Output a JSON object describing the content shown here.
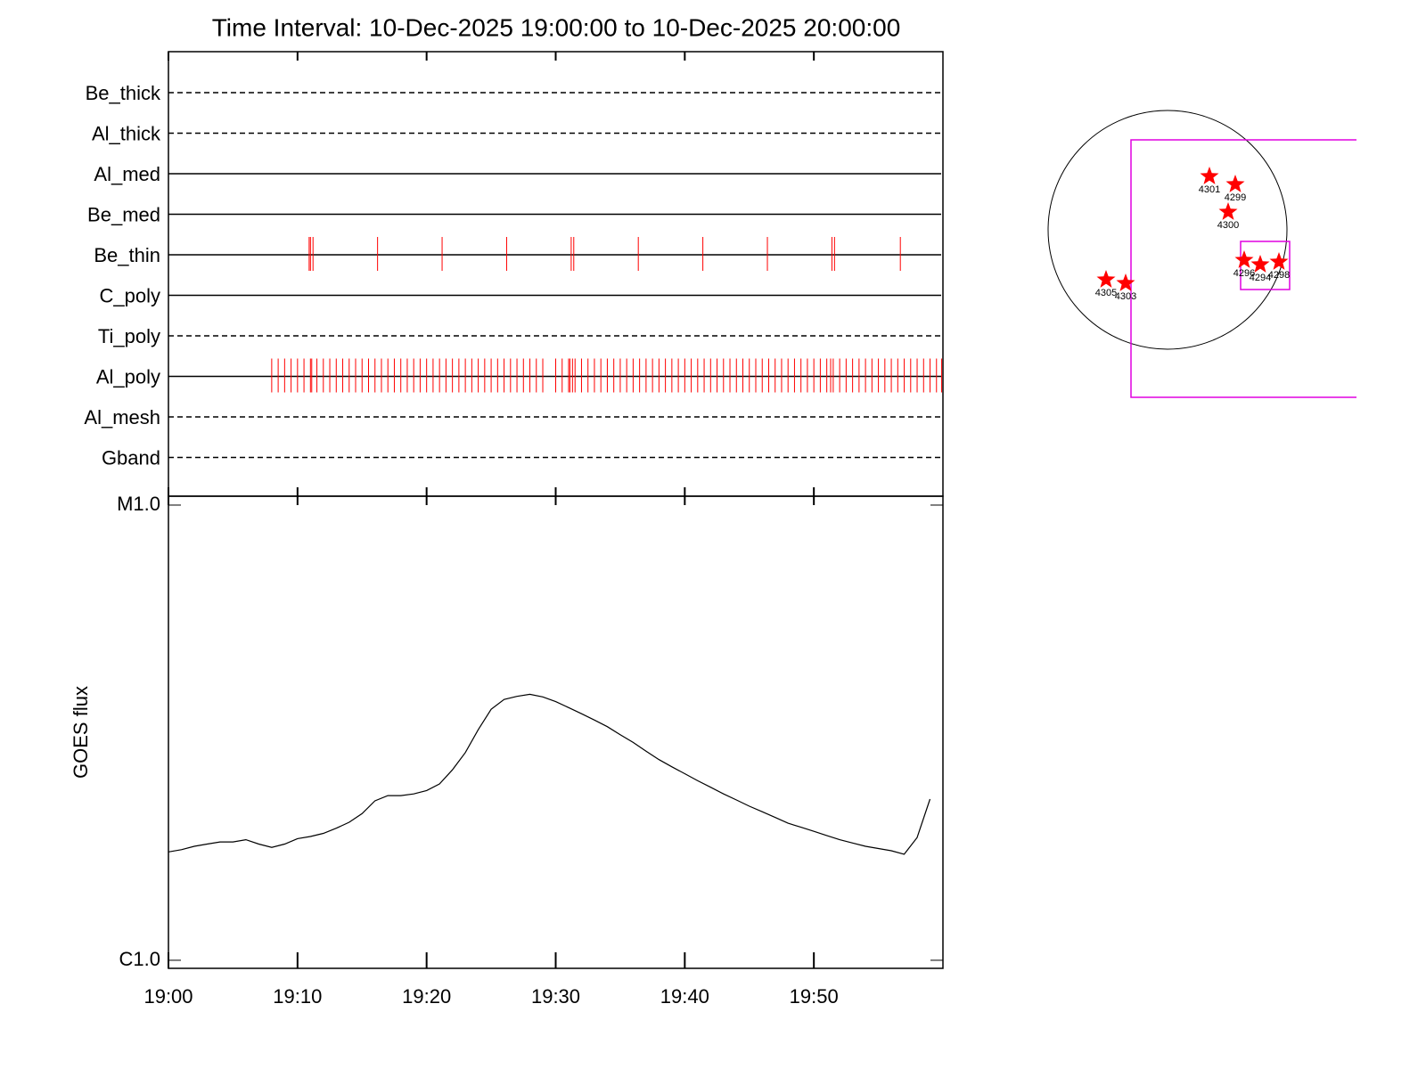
{
  "chart_data": [
    {
      "type": "events",
      "title": "Time Interval: 10-Dec-2025 19:00:00 to 10-Dec-2025 20:00:00",
      "xlim": [
        0,
        60
      ],
      "channels": [
        {
          "name": "Be_thick",
          "style": "dashed",
          "events": []
        },
        {
          "name": "Al_thick",
          "style": "dashed",
          "events": []
        },
        {
          "name": "Al_med",
          "style": "solid",
          "events": []
        },
        {
          "name": "Be_med",
          "style": "solid",
          "events": []
        },
        {
          "name": "Be_thin",
          "style": "solid",
          "events": [
            10.9,
            11.0,
            11.2,
            16.2,
            21.2,
            26.2,
            31.2,
            31.4,
            36.4,
            41.4,
            46.4,
            51.4,
            51.6,
            56.7
          ]
        },
        {
          "name": "C_poly",
          "style": "solid",
          "events": []
        },
        {
          "name": "Ti_poly",
          "style": "dashed",
          "events": []
        },
        {
          "name": "Al_poly",
          "style": "solid",
          "events": [
            8.0,
            8.5,
            9.0,
            9.5,
            10.0,
            10.5,
            11.0,
            11.1,
            11.5,
            12.0,
            12.5,
            13.0,
            13.5,
            14.0,
            14.5,
            15.0,
            15.5,
            16.0,
            16.5,
            17.0,
            17.5,
            18.0,
            18.5,
            19.0,
            19.5,
            20.0,
            20.5,
            21.0,
            21.5,
            22.0,
            22.5,
            23.0,
            23.5,
            24.0,
            24.5,
            25.0,
            25.5,
            26.0,
            26.5,
            27.0,
            27.5,
            28.0,
            28.5,
            29.0,
            30.0,
            30.5,
            31.0,
            31.1,
            31.3,
            31.5,
            32.0,
            32.5,
            33.0,
            33.5,
            34.0,
            34.5,
            35.0,
            35.5,
            36.0,
            36.5,
            37.0,
            37.5,
            38.0,
            38.5,
            39.0,
            39.5,
            40.0,
            40.5,
            41.0,
            41.5,
            42.0,
            42.5,
            43.0,
            43.5,
            44.0,
            44.5,
            45.0,
            45.5,
            46.0,
            46.5,
            47.0,
            47.5,
            48.0,
            48.5,
            49.0,
            49.5,
            50.0,
            50.5,
            51.0,
            51.3,
            51.5,
            52.0,
            52.5,
            53.0,
            53.5,
            54.0,
            54.5,
            55.0,
            55.5,
            56.0,
            56.5,
            57.0,
            57.5,
            58.0,
            58.5,
            59.0,
            59.5,
            59.9
          ]
        },
        {
          "name": "Al_mesh",
          "style": "dashed",
          "events": []
        },
        {
          "name": "Gband",
          "style": "dashed",
          "events": []
        }
      ]
    },
    {
      "type": "line",
      "ylabel": "GOES flux",
      "log": true,
      "xlim": [
        0,
        60
      ],
      "xticks": [
        {
          "value": 0,
          "label": "19:00"
        },
        {
          "value": 10,
          "label": "19:10"
        },
        {
          "value": 20,
          "label": "19:20"
        },
        {
          "value": 30,
          "label": "19:30"
        },
        {
          "value": 40,
          "label": "19:40"
        },
        {
          "value": 50,
          "label": "19:50"
        }
      ],
      "ylim": [
        9.6e-07,
        1.046e-05
      ],
      "yticks": [
        {
          "value": 1e-06,
          "label": "C1.0"
        },
        {
          "value": 1e-05,
          "label": "M1.0"
        }
      ],
      "x": [
        0,
        1,
        2,
        3,
        4,
        5,
        6,
        7,
        8,
        9,
        10,
        11,
        12,
        13,
        14,
        15,
        16,
        17,
        18,
        19,
        20,
        21,
        22,
        23,
        24,
        25,
        26,
        27,
        28,
        29,
        30,
        31,
        32,
        33,
        34,
        35,
        36,
        37,
        38,
        39,
        40,
        41,
        42,
        43,
        44,
        45,
        46,
        47,
        48,
        49,
        50,
        51,
        52,
        53,
        54,
        55,
        56,
        57,
        58,
        59,
        60
      ],
      "series": [
        {
          "color": "#000000",
          "values": [
            1.73e-06,
            1.75e-06,
            1.78e-06,
            1.8e-06,
            1.82e-06,
            1.82e-06,
            1.84e-06,
            1.8e-06,
            1.77e-06,
            1.8e-06,
            1.85e-06,
            1.87e-06,
            1.9e-06,
            1.95e-06,
            2.01e-06,
            2.1e-06,
            2.24e-06,
            2.3e-06,
            2.3e-06,
            2.32e-06,
            2.36e-06,
            2.44e-06,
            2.62e-06,
            2.86e-06,
            3.21e-06,
            3.56e-06,
            3.74e-06,
            3.8e-06,
            3.84e-06,
            3.79e-06,
            3.7e-06,
            3.59e-06,
            3.48e-06,
            3.37e-06,
            3.26e-06,
            3.13e-06,
            3.01e-06,
            2.88e-06,
            2.76e-06,
            2.66e-06,
            2.57e-06,
            2.48e-06,
            2.4e-06,
            2.32e-06,
            2.25e-06,
            2.18e-06,
            2.12e-06,
            2.06e-06,
            2e-06,
            1.96e-06,
            1.92e-06,
            1.88e-06,
            1.84e-06,
            1.81e-06,
            1.78e-06,
            1.76e-06,
            1.74e-06,
            1.71e-06,
            1.86e-06,
            2.26e-06,
            null
          ]
        }
      ]
    },
    {
      "type": "sunmap",
      "color": "#ff0000",
      "labels": [
        "4301",
        "4299",
        "4300",
        "4296",
        "4294",
        "4298",
        "4305",
        "4303"
      ]
    }
  ]
}
